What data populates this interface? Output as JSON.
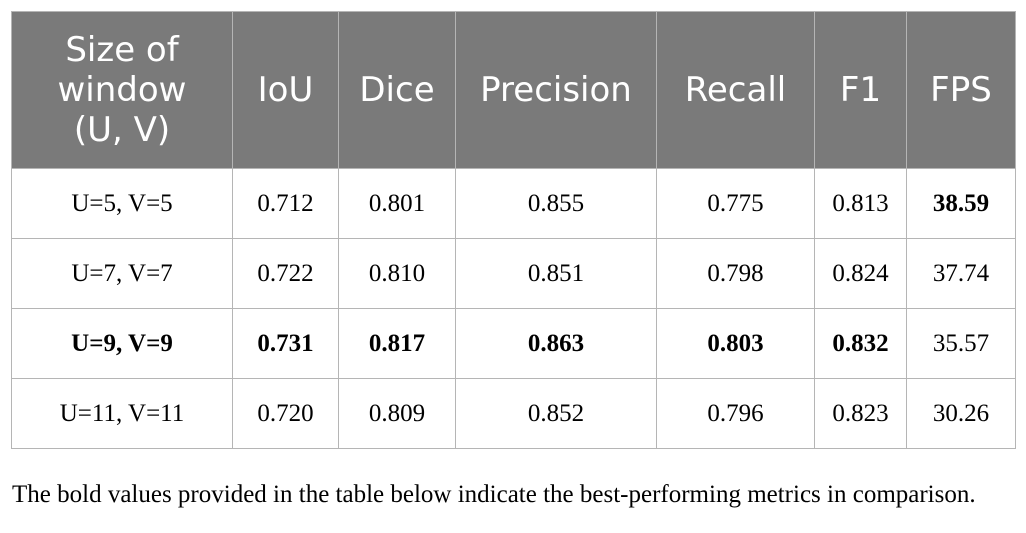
{
  "table": {
    "headers": [
      "Size of window (U, V)",
      "IoU",
      "Dice",
      "Precision",
      "Recall",
      "F1",
      "FPS"
    ],
    "header_first_lines": [
      "Size of",
      "window",
      "(U, V)"
    ],
    "rows": [
      {
        "cells": [
          "U=5, V=5",
          "0.712",
          "0.801",
          "0.855",
          "0.775",
          "0.813",
          "38.59"
        ],
        "bold": [
          false,
          false,
          false,
          false,
          false,
          false,
          true
        ]
      },
      {
        "cells": [
          "U=7, V=7",
          "0.722",
          "0.810",
          "0.851",
          "0.798",
          "0.824",
          "37.74"
        ],
        "bold": [
          false,
          false,
          false,
          false,
          false,
          false,
          false
        ]
      },
      {
        "cells": [
          "U=9, V=9",
          "0.731",
          "0.817",
          "0.863",
          "0.803",
          "0.832",
          "35.57"
        ],
        "bold": [
          true,
          true,
          true,
          true,
          true,
          true,
          false
        ]
      },
      {
        "cells": [
          "U=11, V=11",
          "0.720",
          "0.809",
          "0.852",
          "0.796",
          "0.823",
          "30.26"
        ],
        "bold": [
          false,
          false,
          false,
          false,
          false,
          false,
          false
        ]
      }
    ]
  },
  "caption": "The bold values provided in the table below indicate the best-performing metrics in comparison.",
  "colors": {
    "header_background": "#7a7a7a",
    "header_text": "#ffffff",
    "border": "#b5b5b5"
  }
}
